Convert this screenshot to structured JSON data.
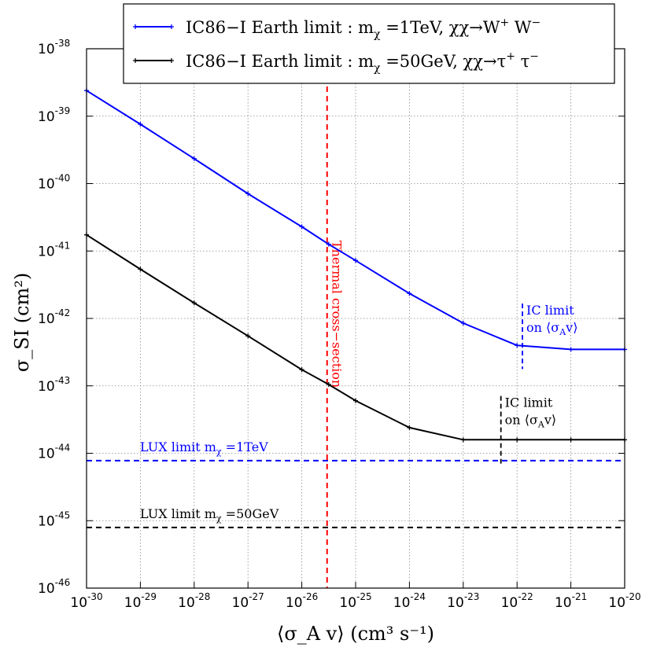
{
  "chart_data": {
    "type": "line",
    "xscale": "log",
    "yscale": "log",
    "xlim_exp": [
      -30,
      -20
    ],
    "ylim_exp": [
      -46,
      -38
    ],
    "grid": true,
    "xlabel": "⟨σ_A v⟩ (cm³ s⁻¹)",
    "ylabel": "σ_SI (cm²)",
    "x_tick_base": "10",
    "x_tick_exponents": [
      "-30",
      "-29",
      "-28",
      "-27",
      "-26",
      "-25",
      "-24",
      "-23",
      "-22",
      "-21",
      "-20"
    ],
    "y_tick_exponents": [
      "-46",
      "-45",
      "-44",
      "-43",
      "-42",
      "-41",
      "-40",
      "-39",
      "-38"
    ],
    "legend_position": "top-center",
    "series": [
      {
        "name": "IC86−I Earth limit : m_χ =1TeV, χχ→W⁺W⁻",
        "legend_main": "IC86−I Earth limit : m",
        "legend_sub": "χ",
        "legend_rest": " =1TeV, χχ→W",
        "legend_sup1": "+",
        "legend_mid": " W",
        "legend_sup2": "−",
        "color": "#0000ff",
        "x_exp": [
          -30,
          -29,
          -28,
          -27,
          -26,
          -25.5,
          -25,
          -24,
          -23,
          -22,
          -21,
          -20
        ],
        "y_exp": [
          -38.62,
          -39.12,
          -39.63,
          -40.15,
          -40.64,
          -40.9,
          -41.14,
          -41.63,
          -42.07,
          -42.4,
          -42.46,
          -42.46
        ]
      },
      {
        "name": "IC86−I Earth limit : m_χ =50GeV, χχ→τ⁺τ⁻",
        "legend_main": "IC86−I Earth limit : m",
        "legend_sub": "χ",
        "legend_rest": " =50GeV, χχ→τ",
        "legend_sup1": "+",
        "legend_mid": " τ",
        "legend_sup2": "−",
        "color": "#000000",
        "x_exp": [
          -30,
          -29,
          -28,
          -27,
          -26,
          -25.5,
          -25,
          -24,
          -23,
          -22,
          -21,
          -20
        ],
        "y_exp": [
          -40.76,
          -41.27,
          -41.77,
          -42.26,
          -42.76,
          -42.98,
          -43.22,
          -43.62,
          -43.8,
          -43.8,
          -43.8,
          -43.8
        ]
      }
    ],
    "reference_lines": [
      {
        "kind": "horizontal",
        "y_exp": -44.11,
        "color": "#0000ff",
        "label_main": "LUX limit m",
        "label_sub": "χ",
        "label_rest": " =1TeV"
      },
      {
        "kind": "horizontal",
        "y_exp": -45.1,
        "color": "#000000",
        "label_main": "LUX limit m",
        "label_sub": "χ",
        "label_rest": " =50GeV"
      },
      {
        "kind": "vertical",
        "x_exp": -25.53,
        "color": "#ff0000",
        "label": "Thermal cross−section"
      }
    ],
    "ic_limits": [
      {
        "x_exp": -21.9,
        "y_from_exp": -42.75,
        "y_to_exp": -41.78,
        "color": "#0000ff",
        "label_line1": "IC limit",
        "label_line2_pre": "on ⟨σ",
        "label_line2_sub": "A",
        "label_line2_post": "v⟩"
      },
      {
        "x_exp": -22.3,
        "y_from_exp": -44.2,
        "y_to_exp": -43.15,
        "color": "#000000",
        "label_line1": "IC limit",
        "label_line2_pre": "on ⟨σ",
        "label_line2_sub": "A",
        "label_line2_post": "v⟩"
      }
    ]
  }
}
